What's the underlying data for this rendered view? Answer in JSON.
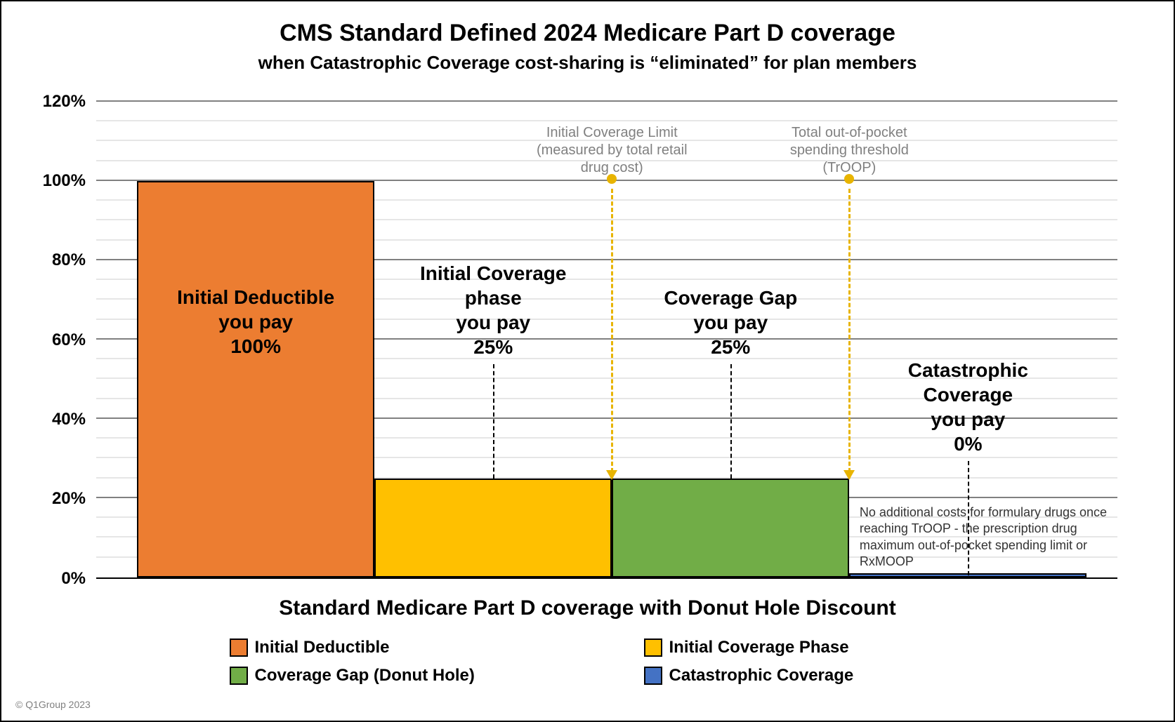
{
  "title": "CMS Standard Defined 2024 Medicare Part D coverage",
  "subtitle": "when Catastrophic Coverage cost-sharing is “eliminated” for plan members",
  "axis_title": "Standard Medicare Part D coverage with Donut Hole Discount",
  "copyright": "© Q1Group 2023",
  "chart": {
    "type": "bar",
    "ylim": [
      0,
      120
    ],
    "ytick_step": 20,
    "ytick_labels": [
      "0%",
      "20%",
      "40%",
      "60%",
      "80%",
      "100%",
      "120%"
    ],
    "major_grid_color": "#808080",
    "minor_grid_color": "#e6e6e6",
    "background_color": "#ffffff",
    "threshold_color": "#e8b400",
    "bars": [
      {
        "key": "deductible",
        "value": 100,
        "fill": "#ec7d31",
        "border": "#000000",
        "label": "Initial Deductible\nyou pay\n100%"
      },
      {
        "key": "initial",
        "value": 25,
        "fill": "#ffc000",
        "border": "#000000",
        "label": "Initial Coverage\nphase\nyou pay\n25%"
      },
      {
        "key": "gap",
        "value": 25,
        "fill": "#71ad47",
        "border": "#000000",
        "label": "Coverage Gap\nyou pay\n25%"
      },
      {
        "key": "catastrophic",
        "value": 0.5,
        "fill": "#4472c4",
        "border": "#000000",
        "label": "Catastrophic\nCoverage\nyou pay\n0%"
      }
    ],
    "thresholds": [
      {
        "after_bar_key": "initial",
        "label": "Initial Coverage Limit\n(measured by total retail\ndrug cost)"
      },
      {
        "after_bar_key": "gap",
        "label": "Total out-of-pocket\nspending threshold\n(TrOOP)"
      }
    ],
    "footnote": {
      "on_bar_key": "catastrophic",
      "text": "No additional costs for formulary drugs once reaching TrOOP - the prescription drug maximum out-of-pocket spending limit or RxMOOP"
    }
  },
  "legend": [
    {
      "label": "Initial Deductible",
      "fill": "#ec7d31"
    },
    {
      "label": "Initial Coverage Phase",
      "fill": "#ffc000"
    },
    {
      "label": "Coverage Gap (Donut Hole)",
      "fill": "#71ad47"
    },
    {
      "label": "Catastrophic Coverage",
      "fill": "#4472c4"
    }
  ]
}
